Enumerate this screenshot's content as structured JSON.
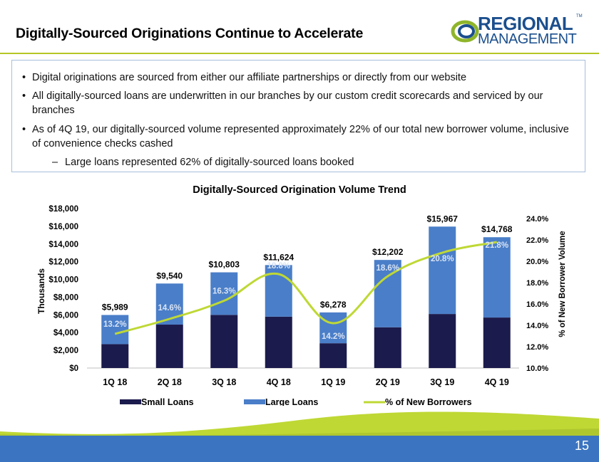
{
  "header": {
    "title": "Digitally-Sourced Originations Continue to Accelerate",
    "logo_top": "REGIONAL",
    "logo_bottom": "MANAGEMENT",
    "logo_tm": "TM"
  },
  "bullets": [
    "Digital originations are sourced from either our affiliate partnerships or directly from our website",
    "All digitally-sourced loans are underwritten in our branches by our custom credit scorecards and serviced by our branches",
    "As of 4Q 19, our digitally-sourced volume represented approximately 22% of our total new borrower volume, inclusive of convenience checks cashed"
  ],
  "sub_bullet": "Large loans represented 62% of digitally-sourced loans booked",
  "page_number": "15",
  "colors": {
    "small_loans": "#1c1b4d",
    "large_loans": "#4a7ec8",
    "pct_line": "#bfd834",
    "accent_rule": "#b5c624",
    "footer_blue": "#3b74c0"
  },
  "chart_data": {
    "type": "bar",
    "stacked": true,
    "title": "Digitally-Sourced Origination Volume Trend",
    "ylabel": "Thousands",
    "y2label": "% of New Borrower Volume",
    "categories": [
      "1Q 18",
      "2Q 18",
      "3Q 18",
      "4Q 18",
      "1Q 19",
      "2Q 19",
      "3Q 19",
      "4Q 19"
    ],
    "ylim": [
      0,
      18000
    ],
    "y_ticks": [
      "$0",
      "$2,000",
      "$4,000",
      "$6,000",
      "$8,000",
      "$10,000",
      "$12,000",
      "$14,000",
      "$16,000",
      "$18,000"
    ],
    "y2lim": [
      10,
      24
    ],
    "y2_ticks": [
      "10.0%",
      "12.0%",
      "14.0%",
      "16.0%",
      "18.0%",
      "20.0%",
      "22.0%",
      "24.0%"
    ],
    "series": [
      {
        "name": "Small Loans",
        "values": [
          2700,
          4900,
          6000,
          5800,
          2800,
          4600,
          6100,
          5700
        ]
      },
      {
        "name": "Large Loans",
        "values": [
          3289,
          4640,
          4803,
          5824,
          3478,
          7602,
          9867,
          9068
        ]
      }
    ],
    "totals": [
      5989,
      9540,
      10803,
      11624,
      6278,
      12202,
      15967,
      14768
    ],
    "total_labels": [
      "$5,989",
      "$9,540",
      "$10,803",
      "$11,624",
      "$6,278",
      "$12,202",
      "$15,967",
      "$14,768"
    ],
    "line": {
      "name": "% of New Borrowers",
      "values": [
        13.2,
        14.6,
        16.3,
        18.8,
        14.2,
        18.6,
        20.8,
        21.8
      ],
      "labels": [
        "13.2%",
        "14.6%",
        "16.3%",
        "18.8%",
        "14.2%",
        "18.6%",
        "20.8%",
        "21.8%"
      ]
    },
    "legend": [
      "Small Loans",
      "Large Loans",
      "% of New Borrowers"
    ],
    "legend_position": "bottom",
    "grid": false
  }
}
